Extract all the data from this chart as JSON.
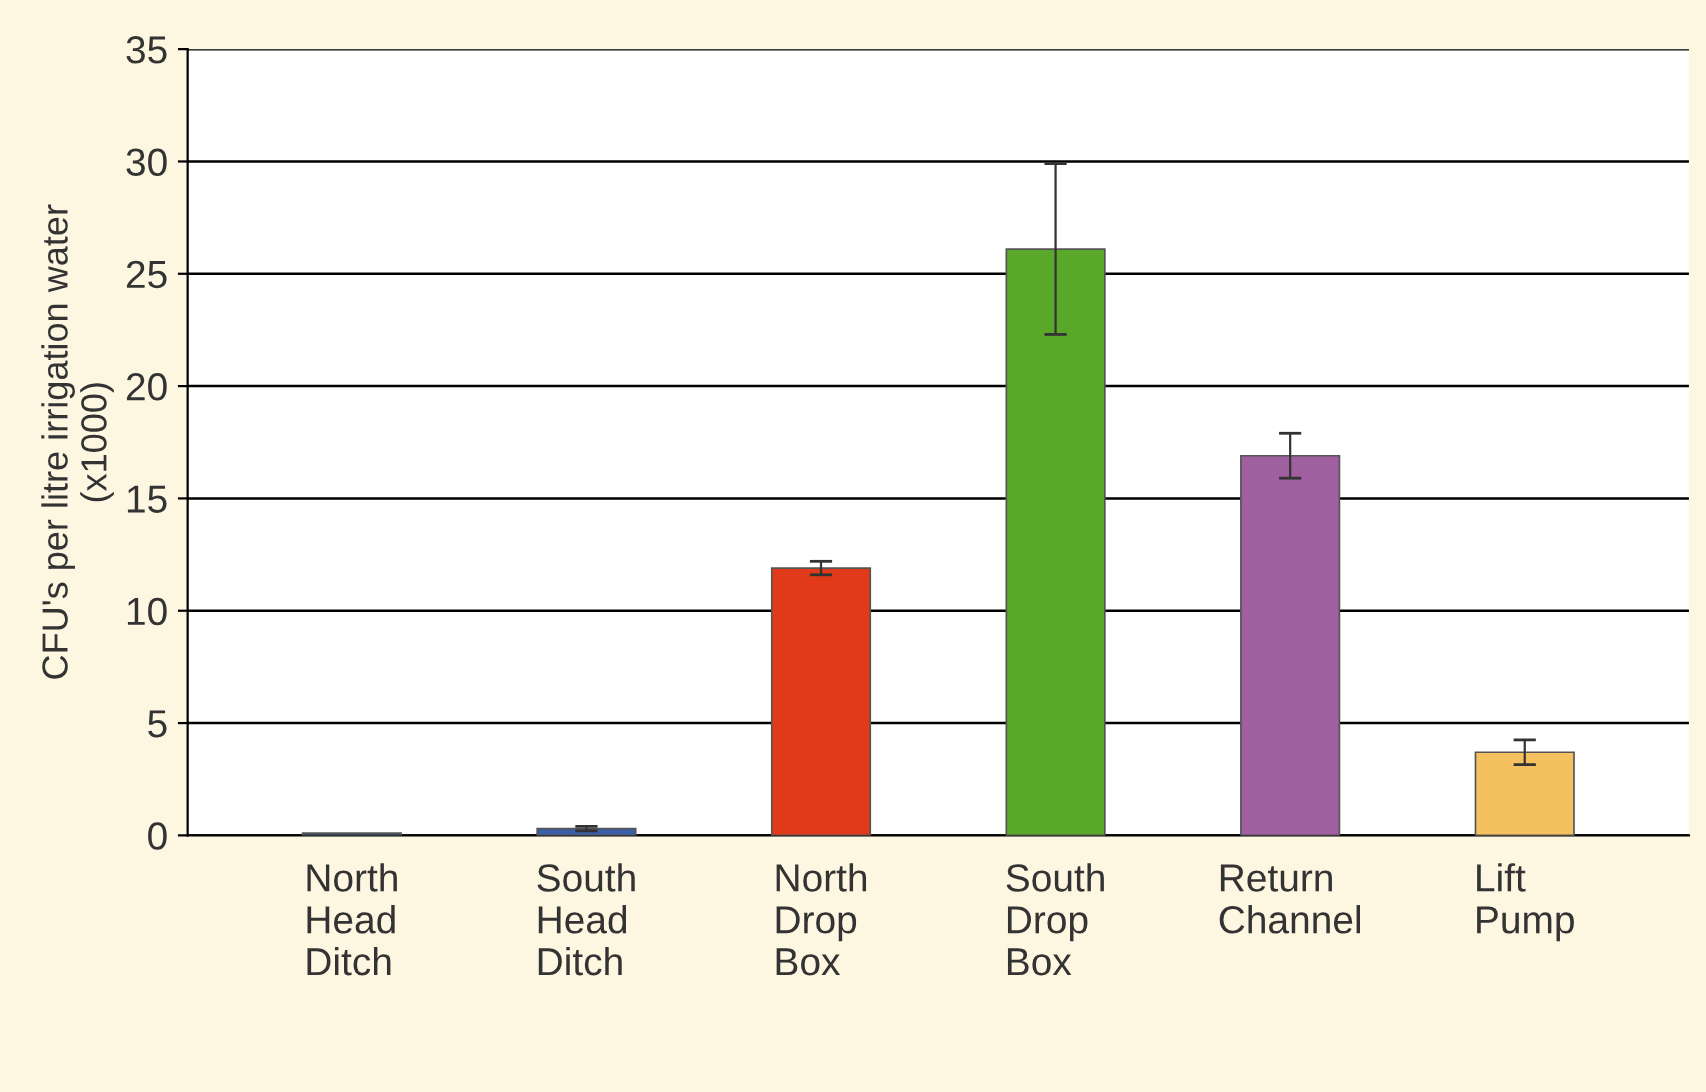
{
  "chart_data": {
    "type": "bar",
    "ylabel": "CFU's per litre irrigation water\n(x1000)",
    "categories": [
      "North\nHead\nDitch",
      "South\nHead\nDitch",
      "North\nDrop\nBox",
      "South\nDrop\nBox",
      "Return\nChannel",
      "Lift\nPump"
    ],
    "values": [
      0.1,
      0.3,
      11.9,
      26.1,
      16.9,
      3.7
    ],
    "errors": [
      null,
      0.1,
      0.3,
      3.8,
      1.0,
      0.55
    ],
    "colors": [
      "#1f3a6e",
      "#3a5fa8",
      "#e03a1a",
      "#5aa82a",
      "#a060a0",
      "#f5c060"
    ],
    "ylim": [
      0,
      35
    ],
    "yticks": [
      0,
      5,
      10,
      15,
      20,
      25,
      30,
      35
    ],
    "grid": "y"
  }
}
